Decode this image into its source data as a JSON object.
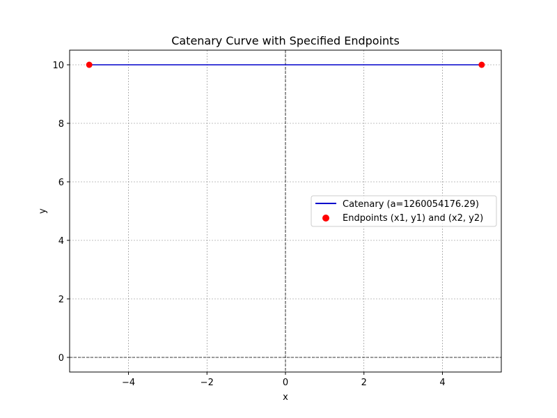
{
  "chart_data": {
    "type": "line",
    "title": "Catenary Curve with Specified Endpoints",
    "xlabel": "x",
    "ylabel": "y",
    "xlim": [
      -5.5,
      5.5
    ],
    "ylim": [
      -0.5,
      10.5
    ],
    "xticks": [
      -4,
      -2,
      0,
      2,
      4
    ],
    "yticks": [
      0,
      2,
      4,
      6,
      8,
      10
    ],
    "xtick_labels": [
      "−4",
      "−2",
      "0",
      "2",
      "4"
    ],
    "ytick_labels": [
      "0",
      "2",
      "4",
      "6",
      "8",
      "10"
    ],
    "grid": true,
    "reference_lines": {
      "x0": true,
      "y0": true
    },
    "series": [
      {
        "name": "Catenary (a=1260054176.29)",
        "kind": "line",
        "color": "#0000cc",
        "x": [
          -5,
          -2.5,
          0,
          2.5,
          5
        ],
        "y": [
          10,
          10,
          10,
          10,
          10
        ]
      },
      {
        "name": "Endpoints (x1, y1) and (x2, y2)",
        "kind": "scatter",
        "color": "#ff0000",
        "x": [
          -5,
          5
        ],
        "y": [
          10,
          10
        ]
      }
    ],
    "legend_location": "center-right"
  }
}
